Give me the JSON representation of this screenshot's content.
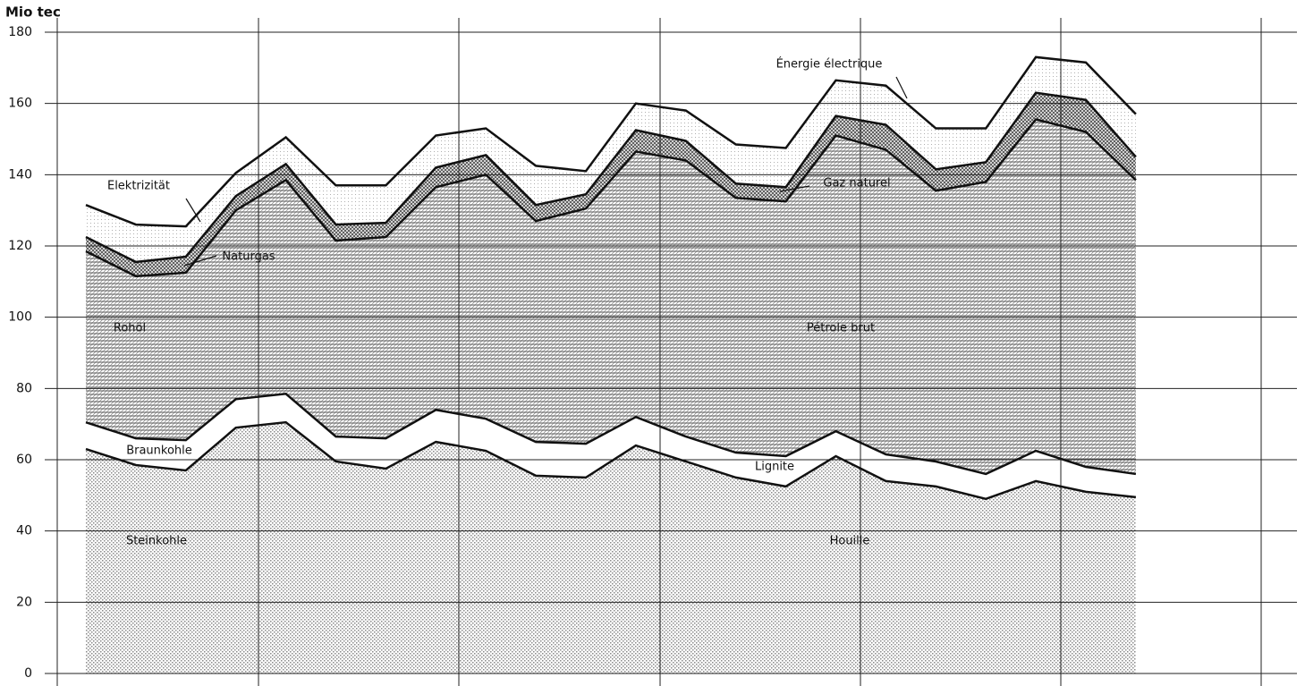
{
  "chart_data": {
    "type": "stacked-area",
    "y_label": "Mio tec",
    "categories": [
      null,
      null,
      null,
      null,
      null,
      null,
      null,
      null,
      null,
      null,
      null,
      null,
      null,
      null,
      null,
      null,
      null,
      null,
      null,
      null,
      null,
      null
    ],
    "ylim": [
      0,
      180
    ],
    "yticks": [
      0,
      20,
      40,
      60,
      80,
      100,
      120,
      140,
      160,
      180
    ],
    "grid": true,
    "series": [
      {
        "name": "Steinkohle",
        "label_fr": "Houille",
        "color": "#8a8a8a",
        "values": [
          63,
          58.5,
          57,
          69,
          70.5,
          59.5,
          57.5,
          65,
          62.5,
          55.5,
          55,
          64,
          59.5,
          55,
          52.5,
          61,
          54,
          52.5,
          49,
          54,
          51,
          49.5
        ]
      },
      {
        "name": "Braunkohle",
        "label_fr": "Lignite",
        "color": "#ffffff",
        "values": [
          7.5,
          7.5,
          8.5,
          8,
          8,
          7,
          8.5,
          9,
          9,
          9.5,
          9.5,
          8,
          7,
          7,
          8.5,
          7,
          7.5,
          7,
          7,
          8.5,
          7,
          6.5
        ]
      },
      {
        "name": "Rohöl",
        "label_fr": "Pétrole brut",
        "color": "#6e6e6e",
        "values": [
          48,
          45.5,
          47,
          53,
          60,
          55,
          56.5,
          62.5,
          68.5,
          62,
          66,
          74.5,
          77.5,
          71.5,
          71.5,
          83,
          85.5,
          76,
          82,
          93,
          94,
          82.5
        ]
      },
      {
        "name": "Naturgas",
        "label_fr": "Gaz naturel",
        "color": "#555555",
        "values": [
          4,
          4,
          4.5,
          4,
          4.5,
          4.5,
          4,
          5.5,
          5.5,
          4.5,
          4,
          6,
          5.5,
          4,
          4,
          5.5,
          7,
          6,
          5.5,
          7.5,
          9,
          6.5
        ]
      },
      {
        "name": "Elektrizität",
        "label_fr": "Énergie électrique",
        "color": "#b0b0b0",
        "values": [
          9,
          10.5,
          8.5,
          6.5,
          7.5,
          11,
          10.5,
          9,
          7.5,
          11,
          6.5,
          7.5,
          8.5,
          11,
          11,
          10,
          11,
          11.5,
          9.5,
          10,
          10.5,
          12
        ]
      }
    ]
  }
}
